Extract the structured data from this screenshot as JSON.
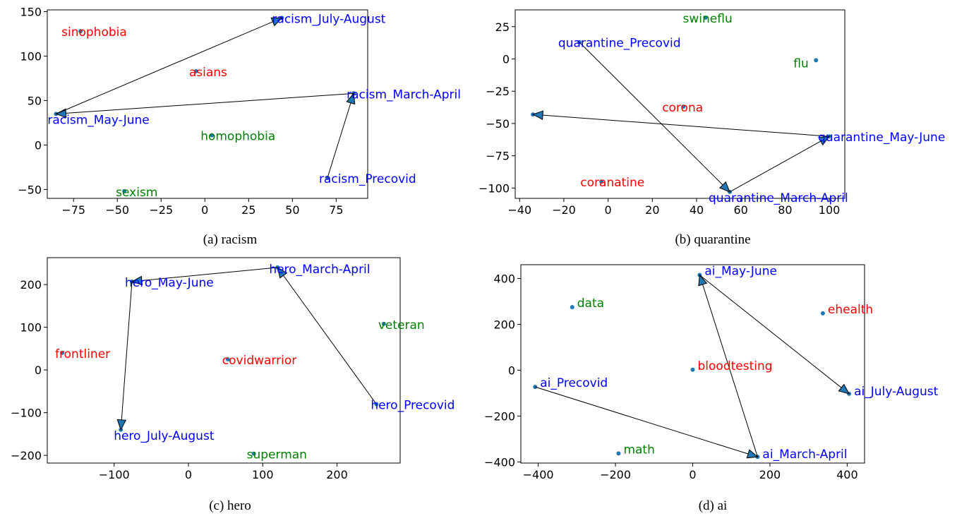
{
  "chart_data": [
    {
      "type": "scatter",
      "caption": "(a) racism",
      "xlim": [
        -90,
        93
      ],
      "ylim": [
        -60,
        152
      ],
      "xticks": [
        -75,
        -50,
        -25,
        0,
        25,
        50,
        75
      ],
      "yticks": [
        -50,
        0,
        50,
        100,
        150
      ],
      "points": [
        {
          "label": "sinophobia",
          "x": -71,
          "y": 128,
          "color": "#ff0000"
        },
        {
          "label": "asians",
          "x": -5,
          "y": 83,
          "color": "#ff0000"
        },
        {
          "label": "homophobia",
          "x": 4,
          "y": 11,
          "color": "#008000"
        },
        {
          "label": "sexism",
          "x": -46,
          "y": -52,
          "color": "#008000"
        },
        {
          "label": "racism_July-August",
          "x": 44,
          "y": 143,
          "color": "#0000ff"
        },
        {
          "label": "racism_May-June",
          "x": -85,
          "y": 35,
          "color": "#0000ff"
        },
        {
          "label": "racism_March-April",
          "x": 85,
          "y": 58,
          "color": "#0000ff"
        },
        {
          "label": "racism_Precovid",
          "x": 70,
          "y": -37,
          "color": "#0000ff"
        }
      ],
      "arrows": [
        {
          "from": "racism_Precovid",
          "to": "racism_March-April"
        },
        {
          "from": "racism_March-April",
          "to": "racism_May-June"
        },
        {
          "from": "racism_May-June",
          "to": "racism_July-August"
        }
      ]
    },
    {
      "type": "scatter",
      "caption": "(b) quarantine",
      "xlim": [
        -42,
        107
      ],
      "ylim": [
        -108,
        38
      ],
      "xticks": [
        -40,
        -20,
        0,
        20,
        40,
        60,
        80,
        100
      ],
      "yticks": [
        -100,
        -75,
        -50,
        -25,
        0,
        25
      ],
      "points": [
        {
          "label": "swineflu",
          "x": 44,
          "y": 32,
          "color": "#008000"
        },
        {
          "label": "flu",
          "x": 94,
          "y": -1,
          "color": "#008000"
        },
        {
          "label": "corona",
          "x": 34,
          "y": -37,
          "color": "#ff0000"
        },
        {
          "label": "coranatine",
          "x": -3,
          "y": -95,
          "color": "#ff0000"
        },
        {
          "label": "quarantine_Precovid",
          "x": -13,
          "y": 13,
          "color": "#0000ff"
        },
        {
          "label": "quarantine_March-April",
          "x": 55,
          "y": -103,
          "color": "#0000ff"
        },
        {
          "label": "quarantine_May-June",
          "x": 100,
          "y": -60,
          "color": "#0000ff"
        },
        {
          "label": "quarantine_July-August",
          "x": -34,
          "y": -43,
          "color": "#0000ff"
        }
      ],
      "arrows": [
        {
          "from": "quarantine_Precovid",
          "to": "quarantine_March-April"
        },
        {
          "from": "quarantine_March-April",
          "to": "quarantine_May-June"
        },
        {
          "from": "quarantine_May-June",
          "to": "quarantine_July-August"
        }
      ]
    },
    {
      "type": "scatter",
      "caption": "(c) hero",
      "xlim": [
        -190,
        285
      ],
      "ylim": [
        -218,
        263
      ],
      "xticks": [
        -100,
        0,
        100,
        200
      ],
      "yticks": [
        -200,
        -100,
        0,
        100,
        200
      ],
      "points": [
        {
          "label": "hero_March-April",
          "x": 120,
          "y": 240,
          "color": "#0000ff"
        },
        {
          "label": "hero_May-June",
          "x": -76,
          "y": 207,
          "color": "#0000ff"
        },
        {
          "label": "veteran",
          "x": 263,
          "y": 108,
          "color": "#008000"
        },
        {
          "label": "frontliner",
          "x": -170,
          "y": 40,
          "color": "#ff0000"
        },
        {
          "label": "covidwarrior",
          "x": 53,
          "y": 25,
          "color": "#ff0000"
        },
        {
          "label": "hero_Precovid",
          "x": 253,
          "y": -80,
          "color": "#0000ff"
        },
        {
          "label": "hero_July-August",
          "x": -91,
          "y": -140,
          "color": "#0000ff"
        },
        {
          "label": "superman",
          "x": 88,
          "y": -196,
          "color": "#008000"
        }
      ],
      "arrows": [
        {
          "from": "hero_Precovid",
          "to": "hero_March-April"
        },
        {
          "from": "hero_March-April",
          "to": "hero_May-June"
        },
        {
          "from": "hero_May-June",
          "to": "hero_July-August"
        }
      ]
    },
    {
      "type": "scatter",
      "caption": "(d) ai",
      "xlim": [
        -445,
        445
      ],
      "ylim": [
        -405,
        460
      ],
      "xticks": [
        -400,
        -200,
        0,
        200,
        400
      ],
      "yticks": [
        -400,
        -200,
        0,
        200,
        400
      ],
      "points": [
        {
          "label": "ai_May-June",
          "x": 18,
          "y": 415,
          "color": "#0000ff"
        },
        {
          "label": "data",
          "x": -312,
          "y": 275,
          "color": "#008000"
        },
        {
          "label": "ehealth",
          "x": 337,
          "y": 248,
          "color": "#ff0000"
        },
        {
          "label": "bloodtesting",
          "x": 0,
          "y": 2,
          "color": "#ff0000"
        },
        {
          "label": "ai_Precovid",
          "x": -408,
          "y": -73,
          "color": "#0000ff"
        },
        {
          "label": "ai_July-August",
          "x": 405,
          "y": -103,
          "color": "#0000ff"
        },
        {
          "label": "math",
          "x": -192,
          "y": -363,
          "color": "#008000"
        },
        {
          "label": "ai_March-April",
          "x": 168,
          "y": -378,
          "color": "#0000ff"
        }
      ],
      "arrows": [
        {
          "from": "ai_Precovid",
          "to": "ai_March-April"
        },
        {
          "from": "ai_March-April",
          "to": "ai_May-June"
        },
        {
          "from": "ai_May-June",
          "to": "ai_July-August"
        }
      ]
    }
  ]
}
